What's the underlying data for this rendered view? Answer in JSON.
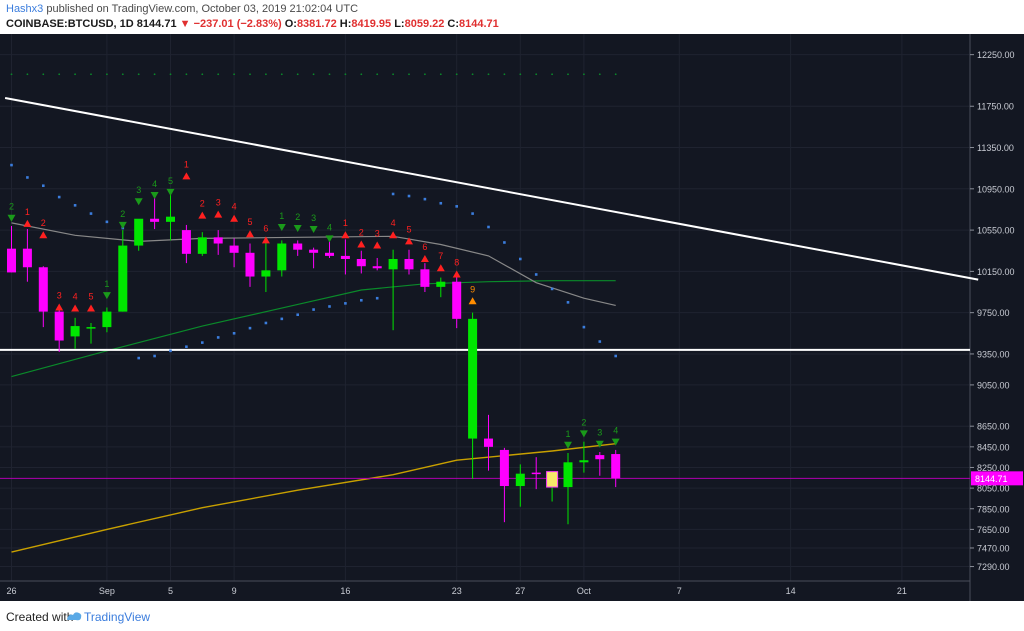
{
  "header": {
    "author": "Hashx3",
    "published": "published on TradingView.com, October 03, 2019 21:02:04 UTC",
    "symbol": "COINBASE:BTCUSD, 1D",
    "last": "8144.71",
    "change": "▼ −237.01 (−2.83%)",
    "o_label": "O:",
    "o": "8381.72",
    "h_label": "H:",
    "h": "8419.95",
    "l_label": "L:",
    "l": "8059.22",
    "c_label": "C:",
    "c": "8144.71"
  },
  "footer": {
    "created": "Created with",
    "brand": "TradingView"
  },
  "colors": {
    "bg": "#131722",
    "up": "#00e600",
    "down": "#ff00ff",
    "grid": "#1f2330",
    "trend": "#ffffff",
    "ma_long": "#c8a000",
    "ma_mid": "#0a8a2a",
    "ma_short": "#888888",
    "sar": "#3b7ddd",
    "sig_buy": "#1a9a1a",
    "sig_sell": "#ff2020",
    "sig_nine": "#ff8c00"
  },
  "chart_data": {
    "type": "candlestick",
    "symbol": "COINBASE:BTCUSD",
    "interval": "1D",
    "ylim": [
      7150,
      12450
    ],
    "y_ticks": [
      12250,
      11750,
      11350,
      10950,
      10550,
      10150,
      9750,
      9350,
      9050,
      8650,
      8450,
      8250,
      8050,
      7850,
      7650,
      7470,
      7290
    ],
    "y_tick_labels": [
      "12250.00",
      "11750.00",
      "11350.00",
      "10950.00",
      "10550.00",
      "10150.00",
      "9750.00",
      "9350.00",
      "9050.00",
      "8650.00",
      "8450.00",
      "8250.00",
      "8050.00",
      "7850.00",
      "7650.00",
      "7470.00",
      "7290.00"
    ],
    "price_label": "8144.71",
    "price_line": 8144.71,
    "x_ticks": [
      {
        "i": 0,
        "label": "26"
      },
      {
        "i": 6,
        "label": "Sep"
      },
      {
        "i": 10,
        "label": "5"
      },
      {
        "i": 14,
        "label": "9"
      },
      {
        "i": 21,
        "label": "16"
      },
      {
        "i": 28,
        "label": "23"
      },
      {
        "i": 32,
        "label": "27"
      },
      {
        "i": 36,
        "label": "Oct"
      },
      {
        "i": 42,
        "label": "7"
      },
      {
        "i": 49,
        "label": "14"
      },
      {
        "i": 56,
        "label": "21"
      }
    ],
    "candles": [
      {
        "i": 0,
        "o": 10370,
        "h": 10590,
        "l": 10140,
        "c": 10140
      },
      {
        "i": 1,
        "o": 10370,
        "h": 10560,
        "l": 10050,
        "c": 10190
      },
      {
        "i": 2,
        "o": 10190,
        "h": 10200,
        "l": 9610,
        "c": 9760
      },
      {
        "i": 3,
        "o": 9760,
        "h": 9820,
        "l": 9370,
        "c": 9480
      },
      {
        "i": 4,
        "o": 9520,
        "h": 9700,
        "l": 9400,
        "c": 9620
      },
      {
        "i": 5,
        "o": 9600,
        "h": 9650,
        "l": 9450,
        "c": 9610
      },
      {
        "i": 6,
        "o": 9610,
        "h": 9800,
        "l": 9560,
        "c": 9760
      },
      {
        "i": 7,
        "o": 9760,
        "h": 10550,
        "l": 9760,
        "c": 10400
      },
      {
        "i": 8,
        "o": 10400,
        "h": 10650,
        "l": 10350,
        "c": 10660
      },
      {
        "i": 9,
        "o": 10660,
        "h": 10870,
        "l": 10560,
        "c": 10630
      },
      {
        "i": 10,
        "o": 10630,
        "h": 10900,
        "l": 10450,
        "c": 10680
      },
      {
        "i": 11,
        "o": 10550,
        "h": 10600,
        "l": 10230,
        "c": 10320
      },
      {
        "i": 12,
        "o": 10320,
        "h": 10530,
        "l": 10300,
        "c": 10480
      },
      {
        "i": 13,
        "o": 10480,
        "h": 10550,
        "l": 10310,
        "c": 10420
      },
      {
        "i": 14,
        "o": 10400,
        "h": 10470,
        "l": 10190,
        "c": 10330
      },
      {
        "i": 15,
        "o": 10330,
        "h": 10420,
        "l": 10000,
        "c": 10100
      },
      {
        "i": 16,
        "o": 10100,
        "h": 10450,
        "l": 9950,
        "c": 10160
      },
      {
        "i": 17,
        "o": 10160,
        "h": 10450,
        "l": 10100,
        "c": 10420
      },
      {
        "i": 18,
        "o": 10420,
        "h": 10450,
        "l": 10300,
        "c": 10360
      },
      {
        "i": 19,
        "o": 10360,
        "h": 10380,
        "l": 10180,
        "c": 10330
      },
      {
        "i": 20,
        "o": 10330,
        "h": 10440,
        "l": 10280,
        "c": 10300
      },
      {
        "i": 21,
        "o": 10300,
        "h": 10460,
        "l": 10120,
        "c": 10270
      },
      {
        "i": 22,
        "o": 10270,
        "h": 10350,
        "l": 10130,
        "c": 10200
      },
      {
        "i": 23,
        "o": 10200,
        "h": 10280,
        "l": 10160,
        "c": 10180
      },
      {
        "i": 24,
        "o": 10170,
        "h": 10360,
        "l": 9580,
        "c": 10270
      },
      {
        "i": 25,
        "o": 10270,
        "h": 10360,
        "l": 10120,
        "c": 10170
      },
      {
        "i": 26,
        "o": 10170,
        "h": 10230,
        "l": 9950,
        "c": 10000
      },
      {
        "i": 27,
        "o": 10000,
        "h": 10090,
        "l": 9900,
        "c": 10050
      },
      {
        "i": 28,
        "o": 10050,
        "h": 10100,
        "l": 9600,
        "c": 9690
      },
      {
        "i": 29,
        "o": 8530,
        "h": 9750,
        "l": 8140,
        "c": 9690
      },
      {
        "i": 30,
        "o": 8530,
        "h": 8760,
        "l": 8220,
        "c": 8450
      },
      {
        "i": 31,
        "o": 8420,
        "h": 8440,
        "l": 7720,
        "c": 8070
      },
      {
        "i": 32,
        "o": 8070,
        "h": 8280,
        "l": 7870,
        "c": 8190
      },
      {
        "i": 33,
        "o": 8200,
        "h": 8350,
        "l": 8040,
        "c": 8190
      },
      {
        "i": 34,
        "o": 8070,
        "h": 8190,
        "l": 7920,
        "c": 8200
      },
      {
        "i": 35,
        "o": 8060,
        "h": 8390,
        "l": 7700,
        "c": 8300
      },
      {
        "i": 36,
        "o": 8300,
        "h": 8500,
        "l": 8200,
        "c": 8320
      },
      {
        "i": 37,
        "o": 8370,
        "h": 8400,
        "l": 8170,
        "c": 8330
      },
      {
        "i": 38,
        "o": 8380,
        "h": 8420,
        "l": 8060,
        "c": 8145
      }
    ],
    "ma_long": [
      [
        0,
        7430
      ],
      [
        6,
        7650
      ],
      [
        12,
        7860
      ],
      [
        18,
        8030
      ],
      [
        24,
        8180
      ],
      [
        28,
        8320
      ],
      [
        34,
        8410
      ],
      [
        38,
        8480
      ]
    ],
    "ma_mid": [
      [
        0,
        9130
      ],
      [
        6,
        9380
      ],
      [
        12,
        9620
      ],
      [
        18,
        9830
      ],
      [
        22,
        9970
      ],
      [
        26,
        10030
      ],
      [
        30,
        10050
      ],
      [
        34,
        10060
      ],
      [
        38,
        10060
      ]
    ],
    "ma_short": [
      [
        0,
        10620
      ],
      [
        4,
        10500
      ],
      [
        8,
        10440
      ],
      [
        12,
        10470
      ],
      [
        18,
        10480
      ],
      [
        24,
        10490
      ],
      [
        27,
        10410
      ],
      [
        30,
        10300
      ],
      [
        33,
        10040
      ],
      [
        36,
        9890
      ],
      [
        38,
        9820
      ]
    ],
    "trendline": [
      [
        -0.4,
        11830
      ],
      [
        60.8,
        10070
      ]
    ],
    "support_line": 9390,
    "sar": [
      [
        0,
        11180
      ],
      [
        1,
        11060
      ],
      [
        2,
        10980
      ],
      [
        3,
        10870
      ],
      [
        4,
        10790
      ],
      [
        5,
        10710
      ],
      [
        6,
        10630
      ],
      [
        7,
        10570
      ],
      [
        8,
        9310
      ],
      [
        9,
        9330
      ],
      [
        10,
        9380
      ],
      [
        11,
        9420
      ],
      [
        12,
        9460
      ],
      [
        13,
        9510
      ],
      [
        14,
        9550
      ],
      [
        15,
        9600
      ],
      [
        16,
        9650
      ],
      [
        17,
        9690
      ],
      [
        18,
        9730
      ],
      [
        19,
        9780
      ],
      [
        20,
        9810
      ],
      [
        21,
        9840
      ],
      [
        22,
        9870
      ],
      [
        23,
        9890
      ],
      [
        24,
        10900
      ],
      [
        25,
        10880
      ],
      [
        26,
        10850
      ],
      [
        27,
        10810
      ],
      [
        28,
        10780
      ],
      [
        29,
        10710
      ],
      [
        30,
        10580
      ],
      [
        31,
        10430
      ],
      [
        32,
        10270
      ],
      [
        33,
        10120
      ],
      [
        34,
        9980
      ],
      [
        35,
        9850
      ],
      [
        36,
        9610
      ],
      [
        37,
        9470
      ],
      [
        38,
        9330
      ]
    ],
    "top_dots_y": 12060,
    "signals": [
      {
        "i": 0,
        "label": "2",
        "dir": "buy",
        "y": 10670
      },
      {
        "i": 1,
        "label": "1",
        "dir": "sell",
        "y": 10620
      },
      {
        "i": 2,
        "label": "2",
        "dir": "sell",
        "y": 10510
      },
      {
        "i": 3,
        "label": "3",
        "dir": "sell",
        "y": 9810
      },
      {
        "i": 4,
        "label": "4",
        "dir": "sell",
        "y": 9800
      },
      {
        "i": 5,
        "label": "5",
        "dir": "sell",
        "y": 9800
      },
      {
        "i": 6,
        "label": "1",
        "dir": "buy",
        "y": 9920
      },
      {
        "i": 7,
        "label": "2",
        "dir": "buy",
        "y": 10600
      },
      {
        "i": 8,
        "label": "3",
        "dir": "buy",
        "y": 10830
      },
      {
        "i": 9,
        "label": "4",
        "dir": "buy",
        "y": 10890
      },
      {
        "i": 10,
        "label": "5",
        "dir": "buy",
        "y": 10920
      },
      {
        "i": 11,
        "label": "1",
        "dir": "sell",
        "y": 11080
      },
      {
        "i": 12,
        "label": "2",
        "dir": "sell",
        "y": 10700
      },
      {
        "i": 13,
        "label": "3",
        "dir": "sell",
        "y": 10710
      },
      {
        "i": 14,
        "label": "4",
        "dir": "sell",
        "y": 10670
      },
      {
        "i": 15,
        "label": "5",
        "dir": "sell",
        "y": 10520
      },
      {
        "i": 16,
        "label": "6",
        "dir": "sell",
        "y": 10460
      },
      {
        "i": 17,
        "label": "1",
        "dir": "buy",
        "y": 10580
      },
      {
        "i": 18,
        "label": "2",
        "dir": "buy",
        "y": 10570
      },
      {
        "i": 19,
        "label": "3",
        "dir": "buy",
        "y": 10560
      },
      {
        "i": 20,
        "label": "4",
        "dir": "buy",
        "y": 10470
      },
      {
        "i": 21,
        "label": "1",
        "dir": "sell",
        "y": 10510
      },
      {
        "i": 22,
        "label": "2",
        "dir": "sell",
        "y": 10420
      },
      {
        "i": 23,
        "label": "3",
        "dir": "sell",
        "y": 10410
      },
      {
        "i": 24,
        "label": "4",
        "dir": "sell",
        "y": 10510
      },
      {
        "i": 25,
        "label": "5",
        "dir": "sell",
        "y": 10450
      },
      {
        "i": 26,
        "label": "6",
        "dir": "sell",
        "y": 10280
      },
      {
        "i": 27,
        "label": "7",
        "dir": "sell",
        "y": 10190
      },
      {
        "i": 28,
        "label": "8",
        "dir": "sell",
        "y": 10130
      },
      {
        "i": 29,
        "label": "9",
        "dir": "nine",
        "y": 9870
      },
      {
        "i": 35,
        "label": "1",
        "dir": "buy",
        "y": 8470
      },
      {
        "i": 36,
        "label": "2",
        "dir": "buy",
        "y": 8580
      },
      {
        "i": 37,
        "label": "3",
        "dir": "buy",
        "y": 8480
      },
      {
        "i": 38,
        "label": "4",
        "dir": "buy",
        "y": 8500
      }
    ]
  }
}
